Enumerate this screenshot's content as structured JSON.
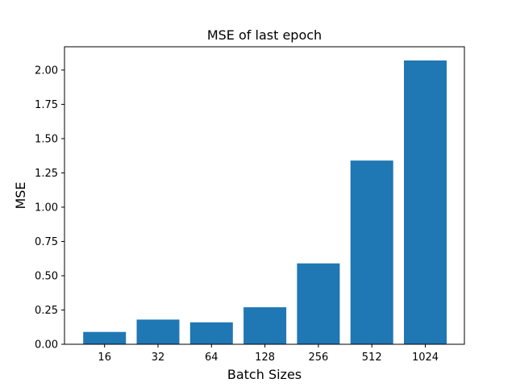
{
  "chart_data": {
    "type": "bar",
    "title": "MSE of last epoch",
    "xlabel": "Batch Sizes",
    "ylabel": "MSE",
    "categories": [
      "16",
      "32",
      "64",
      "128",
      "256",
      "512",
      "1024"
    ],
    "values": [
      0.09,
      0.18,
      0.16,
      0.27,
      0.59,
      1.34,
      2.07
    ],
    "ylim": [
      0,
      2.17
    ],
    "yticks": [
      0.0,
      0.25,
      0.5,
      0.75,
      1.0,
      1.25,
      1.5,
      1.75,
      2.0
    ],
    "ytick_labels": [
      "0.00",
      "0.25",
      "0.50",
      "0.75",
      "1.00",
      "1.25",
      "1.50",
      "1.75",
      "2.00"
    ],
    "grid": false,
    "bar_color": "#1f77b4"
  }
}
